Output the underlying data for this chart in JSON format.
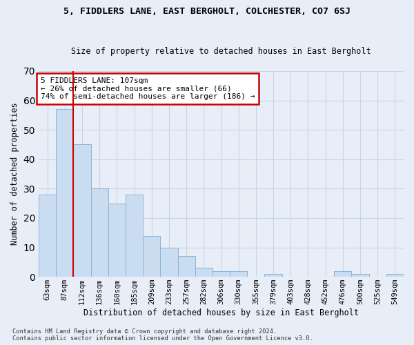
{
  "title1": "5, FIDDLERS LANE, EAST BERGHOLT, COLCHESTER, CO7 6SJ",
  "title2": "Size of property relative to detached houses in East Bergholt",
  "xlabel": "Distribution of detached houses by size in East Bergholt",
  "ylabel": "Number of detached properties",
  "footer1": "Contains HM Land Registry data © Crown copyright and database right 2024.",
  "footer2": "Contains public sector information licensed under the Open Government Licence v3.0.",
  "categories": [
    "63sqm",
    "87sqm",
    "112sqm",
    "136sqm",
    "160sqm",
    "185sqm",
    "209sqm",
    "233sqm",
    "257sqm",
    "282sqm",
    "306sqm",
    "330sqm",
    "355sqm",
    "379sqm",
    "403sqm",
    "428sqm",
    "452sqm",
    "476sqm",
    "500sqm",
    "525sqm",
    "549sqm"
  ],
  "values": [
    28,
    57,
    45,
    30,
    25,
    28,
    14,
    10,
    7,
    3,
    2,
    2,
    0,
    1,
    0,
    0,
    0,
    2,
    1,
    0,
    1
  ],
  "bar_color": "#c9dcf0",
  "bar_edge_color": "#8ab4d8",
  "grid_color": "#c8d4e4",
  "background_color": "#e8eef8",
  "vline_color": "#cc0000",
  "annotation_text": "5 FIDDLERS LANE: 107sqm\n← 26% of detached houses are smaller (66)\n74% of semi-detached houses are larger (186) →",
  "annotation_box_color": "#ffffff",
  "annotation_box_edge": "#cc0000",
  "ylim": [
    0,
    70
  ],
  "yticks": [
    0,
    10,
    20,
    30,
    40,
    50,
    60,
    70
  ],
  "title1_fontsize": 9.5,
  "title2_fontsize": 8.5
}
